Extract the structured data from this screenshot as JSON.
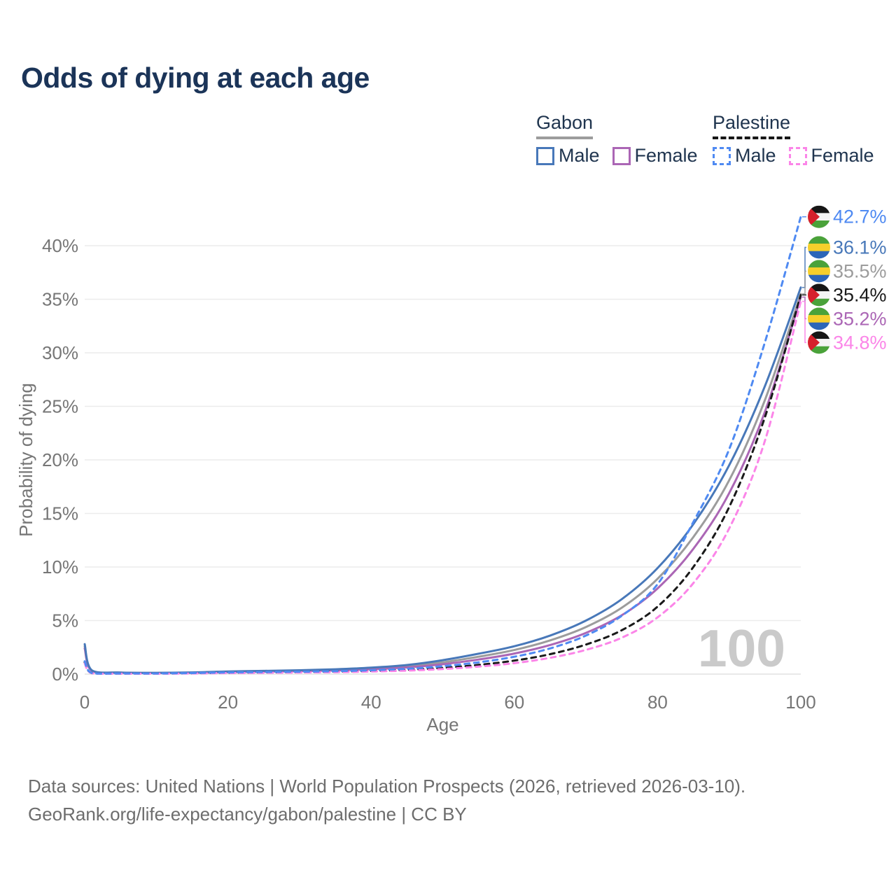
{
  "title": "Odds of dying at each age",
  "legend": {
    "groups": [
      {
        "country": "Gabon",
        "underline_dashed": false,
        "underline_color": "#9c9c9c",
        "items": [
          {
            "label": "Male",
            "color": "#4878b9",
            "dashed": false
          },
          {
            "label": "Female",
            "color": "#ab66b5",
            "dashed": false
          }
        ]
      },
      {
        "country": "Palestine",
        "underline_dashed": true,
        "underline_color": "#161616",
        "items": [
          {
            "label": "Male",
            "color": "#4f8af2",
            "dashed": true
          },
          {
            "label": "Female",
            "color": "#fb85e8",
            "dashed": true
          }
        ]
      }
    ]
  },
  "chart_data": {
    "type": "line",
    "title": "Odds of dying at each age",
    "xlabel": "Age",
    "ylabel": "Probability of dying",
    "xlim": [
      0,
      100
    ],
    "ylim": [
      0,
      44
    ],
    "x_ticks": [
      0,
      20,
      40,
      60,
      80,
      100
    ],
    "y_ticks": [
      0,
      5,
      10,
      15,
      20,
      25,
      30,
      35,
      40
    ],
    "y_tick_suffix": "%",
    "grid": "horizontal-only",
    "legend_position": "top-right",
    "watermark": "100",
    "ages": [
      0,
      1,
      5,
      10,
      15,
      20,
      25,
      30,
      35,
      40,
      45,
      50,
      55,
      60,
      65,
      70,
      75,
      80,
      85,
      90,
      95,
      100
    ],
    "series": [
      {
        "name": "Gabon Both sexes",
        "color": "#9c9c9c",
        "dashed": false,
        "flag": "gabon",
        "end_label": "35.5%",
        "end_value": 35.5,
        "values": [
          2.6,
          0.32,
          0.14,
          0.11,
          0.14,
          0.21,
          0.26,
          0.31,
          0.39,
          0.52,
          0.73,
          1.1,
          1.62,
          2.25,
          3.15,
          4.4,
          6.2,
          8.9,
          12.8,
          18.1,
          25.6,
          35.5
        ]
      },
      {
        "name": "Gabon Female",
        "color": "#ab66b5",
        "dashed": false,
        "flag": "gabon",
        "end_label": "35.2%",
        "end_value": 35.2,
        "values": [
          2.4,
          0.3,
          0.13,
          0.1,
          0.12,
          0.17,
          0.22,
          0.27,
          0.34,
          0.45,
          0.62,
          0.92,
          1.36,
          1.92,
          2.72,
          3.85,
          5.5,
          8.0,
          11.7,
          16.9,
          24.5,
          35.2
        ]
      },
      {
        "name": "Gabon Male",
        "color": "#4878b9",
        "dashed": false,
        "flag": "gabon",
        "end_label": "36.1%",
        "end_value": 36.1,
        "values": [
          2.8,
          0.35,
          0.15,
          0.12,
          0.16,
          0.25,
          0.3,
          0.36,
          0.45,
          0.6,
          0.85,
          1.3,
          1.9,
          2.6,
          3.6,
          5.0,
          7.0,
          9.9,
          14.0,
          19.5,
          26.9,
          36.1
        ]
      },
      {
        "name": "Palestine Both sexes",
        "color": "#1a1a1a",
        "dashed": true,
        "flag": "palestine",
        "end_label": "35.4%",
        "end_value": 35.4,
        "values": [
          1.1,
          0.09,
          0.05,
          0.05,
          0.08,
          0.12,
          0.15,
          0.18,
          0.22,
          0.29,
          0.4,
          0.58,
          0.86,
          1.26,
          1.86,
          2.76,
          4.1,
          6.3,
          10.0,
          15.6,
          24.0,
          35.4
        ]
      },
      {
        "name": "Palestine Female",
        "color": "#fb85e8",
        "dashed": true,
        "flag": "palestine",
        "end_label": "34.8%",
        "end_value": 34.8,
        "values": [
          1.0,
          0.08,
          0.04,
          0.04,
          0.06,
          0.1,
          0.12,
          0.15,
          0.18,
          0.24,
          0.33,
          0.47,
          0.7,
          1.02,
          1.52,
          2.26,
          3.4,
          5.3,
          8.5,
          13.6,
          21.8,
          34.8
        ]
      },
      {
        "name": "Palestine Male",
        "color": "#4f8af2",
        "dashed": true,
        "flag": "palestine",
        "end_label": "42.7%",
        "end_value": 42.7,
        "values": [
          1.2,
          0.1,
          0.06,
          0.06,
          0.1,
          0.16,
          0.19,
          0.22,
          0.27,
          0.36,
          0.5,
          0.74,
          1.1,
          1.62,
          2.4,
          3.6,
          5.45,
          8.4,
          14.2,
          21.0,
          31.0,
          42.7
        ]
      }
    ],
    "flag_colors": {
      "gabon": {
        "stripes": [
          "#4aa23a",
          "#f6cf2c",
          "#2c66b8"
        ]
      },
      "palestine": {
        "stripes": [
          "#161616",
          "#f4f4f4",
          "#4aa23a"
        ],
        "triangle": "#d6202c"
      }
    }
  },
  "footer": {
    "line1": "Data sources: United Nations | World Population Prospects (2026, retrieved 2026-03-10).",
    "line2": "GeoRank.org/life-expectancy/gabon/palestine | CC BY"
  }
}
